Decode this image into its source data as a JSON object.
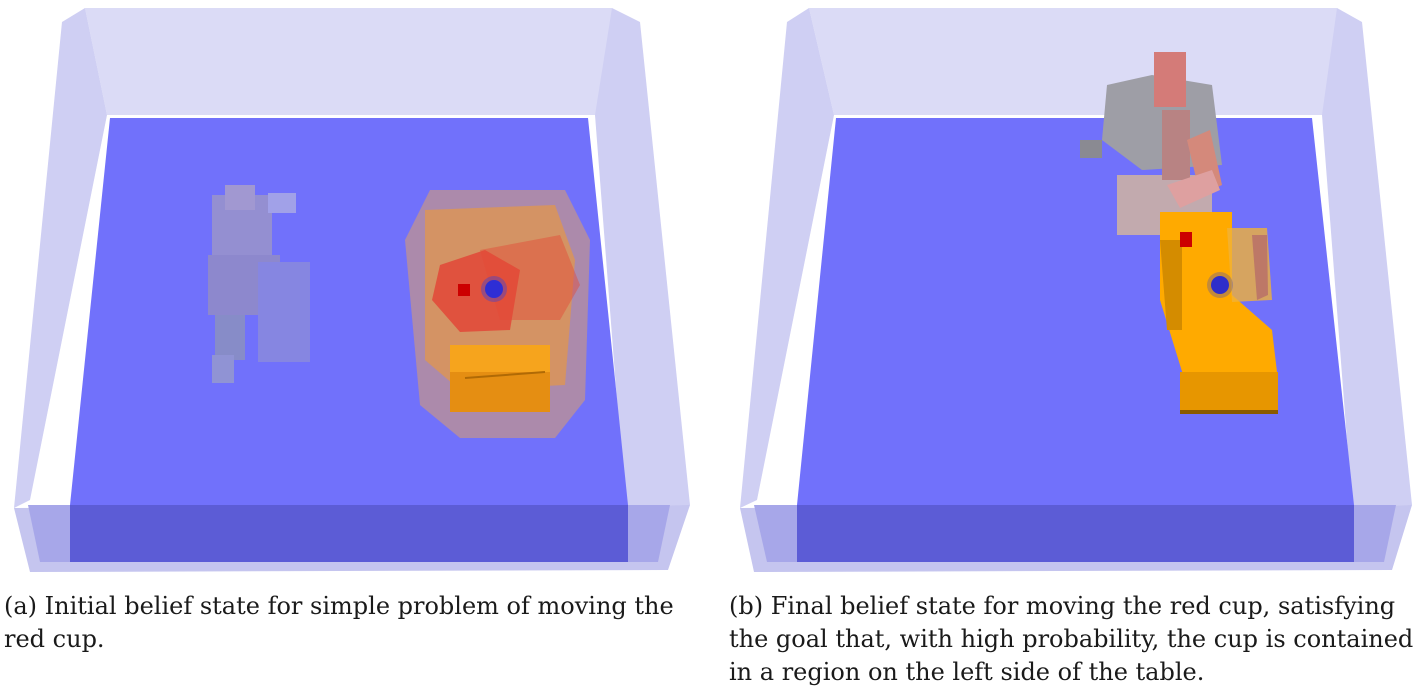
{
  "figure": {
    "panels": [
      {
        "id": "a",
        "caption": "(a) Initial belief state for simple problem of moving the red cup."
      },
      {
        "id": "b",
        "caption": "(b) Final belief state for moving the red cup, satisfying the goal that, with high probability, the cup is contained in a region on the left side of the table."
      }
    ]
  },
  "colors": {
    "table_surface": "#7171fb",
    "table_front": "#5c5cd6",
    "container_walls": "#c9c9f3",
    "cabinet": "#ffaa00",
    "red_cup": "#dd0000",
    "blue_object": "#1c1cdd",
    "robot": "#9a9aa8"
  },
  "icons": {
    "robot": "robot-arm-icon",
    "red_cup": "red-cup-icon",
    "blue_cup": "blue-cup-icon"
  }
}
